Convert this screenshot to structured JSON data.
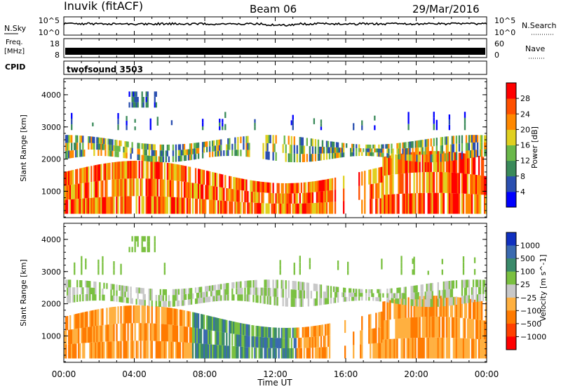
{
  "header": {
    "station": "Inuvik (fitACF)",
    "beam": "Beam 06",
    "date": "29/Mar/2016"
  },
  "noise_panel": {
    "left_label": "N.Sky",
    "right_label": "N.Search",
    "left_ticks": [
      "10^5",
      "10^0"
    ],
    "right_ticks": [
      "10^5",
      "10^0"
    ]
  },
  "freq_panel": {
    "left_label_1": "Freq.",
    "left_label_2": "[MHz]",
    "right_label": "Nave",
    "left_ticks": [
      "18",
      "8"
    ],
    "right_ticks": [
      "60",
      "0"
    ]
  },
  "cpid": {
    "label": "CPID",
    "program": "twofsound 3503"
  },
  "chart_data": [
    {
      "type": "heatmap",
      "title": "",
      "xlabel": "",
      "ylabel": "Slant Range [km]",
      "x_ticks": [
        "00:00",
        "04:00",
        "08:00",
        "12:00",
        "16:00",
        "20:00",
        "00:00"
      ],
      "y_ticks": [
        1000,
        2000,
        3000,
        4000
      ],
      "ylim": [
        180,
        4500
      ],
      "colorbar": {
        "label": "Power [dB]",
        "ticks": [
          4,
          8,
          12,
          16,
          20,
          24,
          28
        ],
        "colors": [
          "#0000ff",
          "#2a4fb0",
          "#3a8a5a",
          "#6ab84a",
          "#e0d020",
          "#ff8800",
          "#ff5000",
          "#ff0000"
        ]
      }
    },
    {
      "type": "heatmap",
      "title": "",
      "xlabel": "Time UT",
      "ylabel": "Slant Range [km]",
      "x_ticks": [
        "00:00",
        "04:00",
        "08:00",
        "12:00",
        "16:00",
        "20:00",
        "00:00"
      ],
      "y_ticks": [
        1000,
        2000,
        3000,
        4000
      ],
      "ylim": [
        180,
        4500
      ],
      "colorbar": {
        "label": "Velocity [m s^-1]",
        "ticks": [
          "1000",
          "500",
          "100",
          "25",
          "−25",
          "−100",
          "−500",
          "−1000"
        ],
        "colors": [
          "#1030c0",
          "#3a6ab0",
          "#3a8a6a",
          "#7ac040",
          "#c8c8c8",
          "#ffb040",
          "#ff7a00",
          "#ff4000",
          "#ff0000"
        ]
      }
    }
  ]
}
